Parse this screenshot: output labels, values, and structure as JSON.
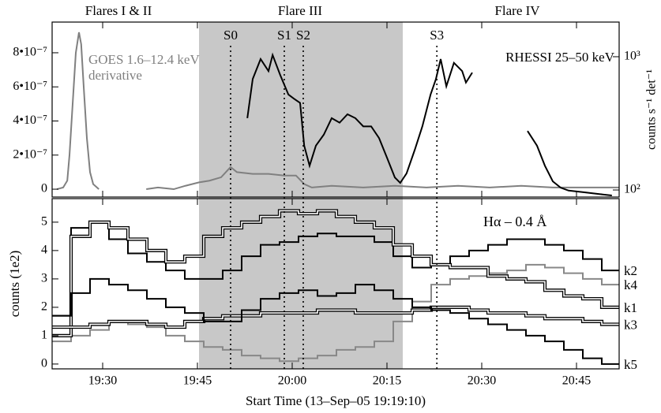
{
  "chart_data": [
    {
      "type": "line",
      "flare_labels": [
        "Flares I & II",
        "Flare III",
        "Flare IV"
      ],
      "shaded": [
        45.25,
        77.5
      ],
      "events": [
        {
          "label": "S0",
          "x": 50.25
        },
        {
          "label": "S1",
          "x": 58.75
        },
        {
          "label": "S2",
          "x": 61.75
        },
        {
          "label": "S3",
          "x": 82.9
        }
      ],
      "xlim": [
        22,
        111.75
      ],
      "xticks": [
        30,
        45,
        60,
        75,
        90,
        105
      ],
      "ylim": [
        -4.6e-08,
        9.8e-07
      ],
      "yticks": [
        0,
        {
          "value": 2e-07,
          "label": "2•10⁻⁷"
        },
        {
          "value": 4e-07,
          "label": "4•10⁻⁷"
        },
        {
          "value": 6e-07,
          "label": "6•10⁻⁷"
        },
        {
          "value": 8e-07,
          "label": "8•10⁻⁷"
        }
      ],
      "y2lim": [
        88.5,
        1820
      ],
      "y2scale": "log",
      "y2ticks": [
        {
          "value": 100,
          "label": "10²"
        },
        {
          "value": 1000,
          "label": "10³"
        }
      ],
      "y2_label": "counts s⁻¹ det⁻¹",
      "series": [
        {
          "name": "GOES 1.6–12.4 keV derivative",
          "color": "#808080",
          "x": [
            22.75,
            23.75,
            24.4,
            24.75,
            25.25,
            25.75,
            26.25,
            26.6,
            27,
            27.5,
            28,
            28.5,
            29.4,
            30,
            36.9,
            38.75,
            41.25,
            43.1,
            45.25,
            46.9,
            48.75,
            50.25,
            51.25,
            53.75,
            56.25,
            58.75,
            60.6,
            61.9,
            63.1,
            66.25,
            71.25,
            76.25,
            81.25,
            86.25,
            91.25,
            96.25,
            101.25,
            106.25,
            111.75
          ],
          "values": [
            0,
            1e-08,
            5e-08,
            2e-07,
            5e-07,
            8e-07,
            9.2e-07,
            8.5e-07,
            6e-07,
            3e-07,
            1e-07,
            3e-08,
            0,
            null,
            0,
            1e-08,
            0,
            2e-08,
            4e-08,
            5e-08,
            7e-08,
            1.3e-07,
            1e-07,
            9e-08,
            9e-08,
            8e-08,
            8e-08,
            3e-08,
            1e-08,
            2e-08,
            1e-08,
            2e-08,
            1e-08,
            2e-08,
            1e-08,
            2e-08,
            1e-08,
            1e-08,
            1e-08
          ]
        },
        {
          "name": "RHESSI 25–50 keV",
          "color": "#000000",
          "axis": "y2",
          "x": [
            52.9,
            53.75,
            55,
            56.25,
            56.9,
            58.1,
            59.4,
            60.25,
            61.25,
            61.9,
            62.75,
            63.75,
            65,
            66.25,
            67.5,
            68.75,
            70,
            71.25,
            72.5,
            73.75,
            75,
            76.25,
            77.1,
            78.1,
            79.4,
            80.6,
            81.9,
            82.75,
            83.5,
            84.4,
            85.6,
            86.9,
            87.5,
            88.5,
            95,
            97.25,
            98.75,
            100,
            101.25,
            102.5,
            103.75,
            106.25,
            108.75,
            110.6
          ],
          "values": [
            346,
            680,
            960,
            780,
            1030,
            730,
            520,
            485,
            450,
            215,
            152,
            215,
            260,
            346,
            320,
            370,
            346,
            300,
            300,
            245,
            175,
            124,
            113,
            133,
            200,
            300,
            520,
            680,
            960,
            600,
            900,
            780,
            640,
            760,
            null,
            277,
            215,
            152,
            116,
            104,
            99,
            96,
            93,
            91
          ]
        }
      ]
    },
    {
      "type": "line",
      "step": true,
      "annotation": "Hα – 0.4 Å",
      "xlim": [
        22,
        111.75
      ],
      "xticks": [
        {
          "value": 30,
          "label": "19:30"
        },
        {
          "value": 45,
          "label": "19:45"
        },
        {
          "value": 60,
          "label": "20:00"
        },
        {
          "value": 75,
          "label": "20:15"
        },
        {
          "value": 90,
          "label": "20:30"
        },
        {
          "value": 105,
          "label": "20:45"
        }
      ],
      "x_label": "Start Time (13–Sep–05 19:19:10)",
      "ylim": [
        -0.17,
        5.83
      ],
      "yticks": [
        0,
        1,
        2,
        3,
        4,
        5
      ],
      "y_label": "counts (1e2)",
      "x": [
        22,
        25,
        28,
        31,
        34,
        37,
        40,
        43,
        46,
        49,
        52,
        55,
        58,
        61,
        64,
        67,
        70,
        73,
        76,
        79,
        82,
        85,
        88,
        91,
        94,
        97,
        100,
        103,
        106,
        109
      ],
      "series": [
        {
          "name": "k2",
          "color": "#000000",
          "values": [
            1.7,
            4.8,
            5.0,
            4.4,
            3.9,
            3.6,
            3.3,
            3.0,
            3.0,
            3.3,
            3.8,
            4.2,
            4.3,
            4.5,
            4.6,
            4.5,
            4.5,
            4.3,
            3.8,
            3.4,
            3.5,
            3.8,
            4.0,
            4.2,
            4.4,
            4.4,
            4.2,
            4.0,
            3.7,
            3.3
          ]
        },
        {
          "name": "k4",
          "color": "#888888",
          "values": [
            0.8,
            1.0,
            1.2,
            1.5,
            1.4,
            1.3,
            1.0,
            0.8,
            0.6,
            0.5,
            0.3,
            0.2,
            0.1,
            0.2,
            0.3,
            0.5,
            0.6,
            0.8,
            1.5,
            2.2,
            2.8,
            3.0,
            3.1,
            3.2,
            3.3,
            3.5,
            3.4,
            3.2,
            3.0,
            2.8
          ]
        },
        {
          "name": "k1",
          "color": "#000000",
          "style": "double",
          "values": [
            1.0,
            4.5,
            5.0,
            4.8,
            4.4,
            4.0,
            3.6,
            3.8,
            4.5,
            4.8,
            5.0,
            5.2,
            5.4,
            5.3,
            5.4,
            5.2,
            5.0,
            4.8,
            4.2,
            3.8,
            3.5,
            3.4,
            3.4,
            3.1,
            3.0,
            2.9,
            2.6,
            2.4,
            2.3,
            2.0
          ]
        },
        {
          "name": "k3",
          "color": "#000000",
          "style": "double",
          "values": [
            1.3,
            1.3,
            1.4,
            1.5,
            1.5,
            1.4,
            1.3,
            1.5,
            1.6,
            1.7,
            1.7,
            1.8,
            1.8,
            1.8,
            1.9,
            1.9,
            1.8,
            1.8,
            1.8,
            1.9,
            2.0,
            2.0,
            1.9,
            1.8,
            1.8,
            1.7,
            1.6,
            1.6,
            1.5,
            1.4
          ]
        },
        {
          "name": "k5",
          "color": "#000000",
          "values": [
            1.7,
            2.5,
            3.0,
            2.8,
            2.6,
            2.3,
            2.0,
            1.8,
            1.5,
            1.5,
            1.9,
            2.3,
            2.5,
            2.6,
            2.4,
            2.5,
            2.8,
            2.6,
            2.3,
            2.0,
            1.9,
            1.8,
            1.6,
            1.4,
            1.2,
            1.0,
            0.8,
            0.5,
            0.2,
            0.0
          ]
        }
      ]
    }
  ]
}
